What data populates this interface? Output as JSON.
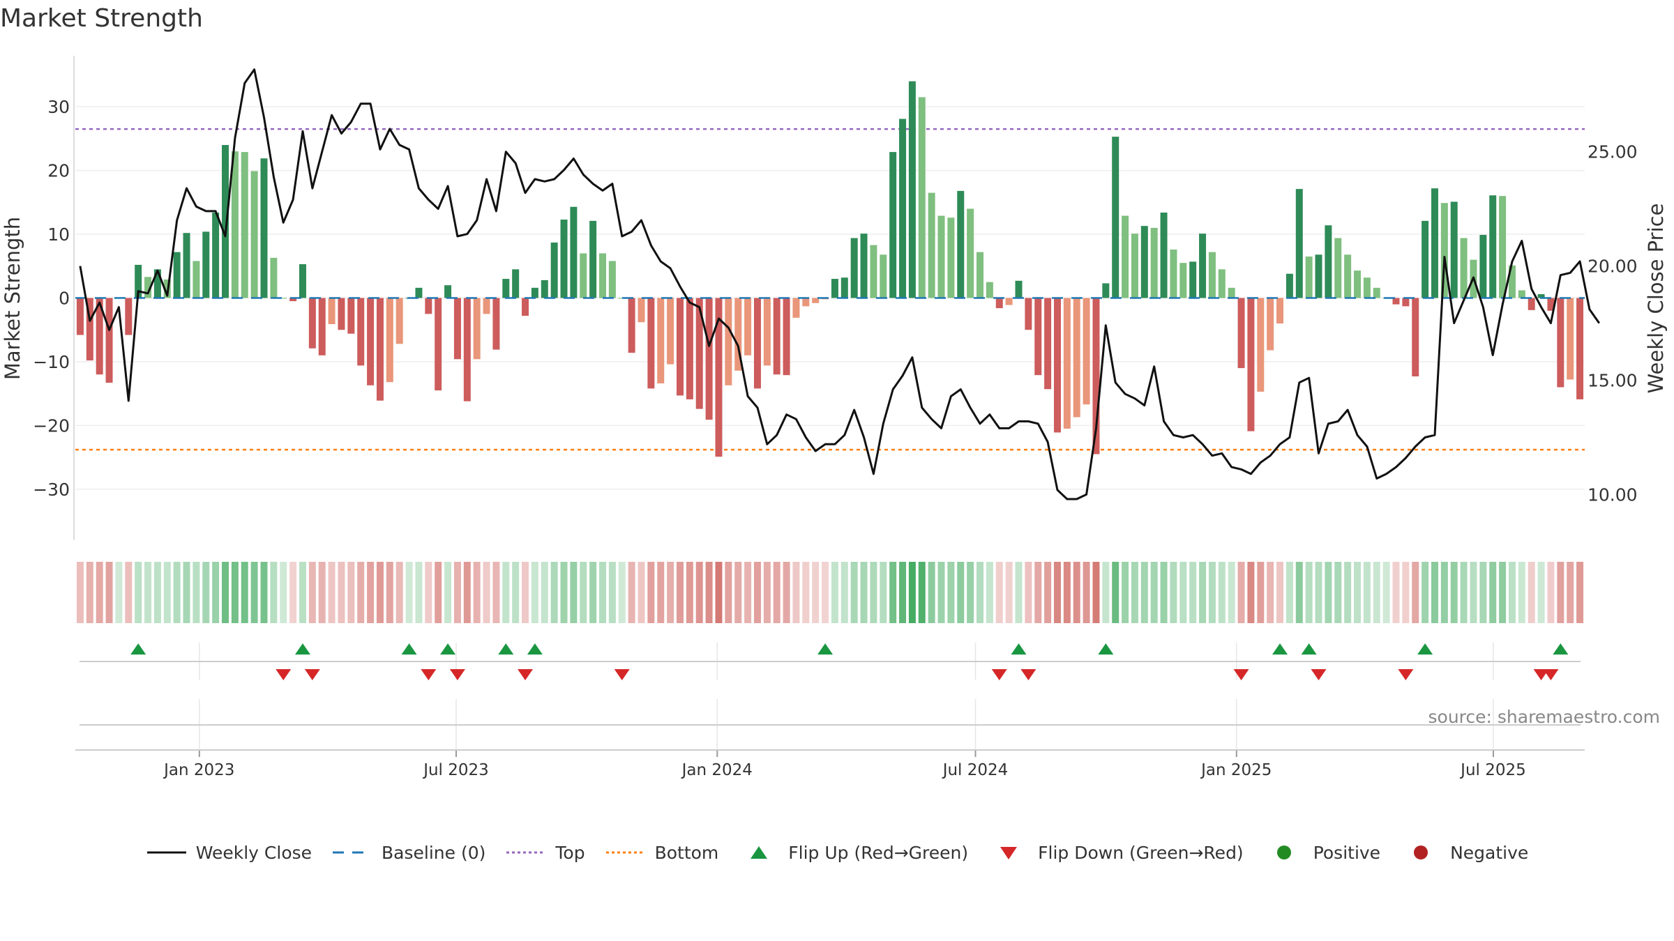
{
  "chart_data": {
    "type": "bar+line",
    "title": "Market Strength",
    "ylabel_left": "Market Strength",
    "ylabel_right": "Weekly Close Price",
    "ylim_left": [
      -38,
      38
    ],
    "yticks_left": [
      30,
      20,
      10,
      0,
      -10,
      -20,
      -30
    ],
    "ytick_labels_left": [
      "30",
      "20",
      "10",
      "0",
      "−10",
      "−20",
      "−30"
    ],
    "ylim_right": [
      8,
      29.2
    ],
    "yticks_right": [
      25,
      20,
      15,
      10
    ],
    "ytick_labels_right": [
      "25.00",
      "20.00",
      "15.00",
      "10.00"
    ],
    "top_line": 26.5,
    "bottom_line": -23.8,
    "x_tick_labels": [
      {
        "date": "2023-01-01",
        "label": "Jan 2023"
      },
      {
        "date": "2023-07-01",
        "label": "Jul 2023"
      },
      {
        "date": "2024-01-01",
        "label": "Jan 2024"
      },
      {
        "date": "2024-07-01",
        "label": "Jul 2024"
      },
      {
        "date": "2025-01-01",
        "label": "Jan 2025"
      },
      {
        "date": "2025-07-01",
        "label": "Jul 2025"
      }
    ],
    "week_dates": [
      "2022-10-09",
      "2025-08-31"
    ],
    "strength": [
      -5.8,
      -9.8,
      -12,
      -13.3,
      0,
      -5.8,
      5.2,
      3.3,
      4.5,
      2.9,
      7.2,
      10.2,
      5.8,
      10.4,
      13.4,
      24,
      23,
      22.9,
      19.9,
      21.9,
      6.3,
      0,
      -0.5,
      5.3,
      -7.9,
      -9,
      -4.1,
      -5,
      -5.6,
      -10.6,
      -13.7,
      -16.1,
      -13.2,
      -7.2,
      0,
      1.6,
      -2.5,
      -14.5,
      2,
      -9.6,
      -16.2,
      -9.6,
      -2.5,
      -8.1,
      3,
      4.5,
      -2.8,
      1.6,
      2.8,
      8.7,
      12.3,
      14.3,
      7,
      12.1,
      7,
      5.8,
      0,
      -8.6,
      -3.8,
      -14.2,
      -13.4,
      -10.4,
      -15.3,
      -15.9,
      -17.4,
      -19.1,
      -24.9,
      -13.7,
      -11.4,
      -9,
      -14.2,
      -10.6,
      -12,
      -12.1,
      -3.1,
      -1.3,
      -0.8,
      -0.2,
      3,
      3.2,
      9.4,
      10.1,
      8.3,
      6.8,
      22.9,
      28.1,
      34,
      31.5,
      16.5,
      12.9,
      12.6,
      16.8,
      14,
      7.2,
      2.5,
      -1.6,
      -1.1,
      2.7,
      -5,
      -12.1,
      -14.3,
      -21.1,
      -20.5,
      -18.7,
      -16.7,
      -24.5,
      2.3,
      25.3,
      12.9,
      10.1,
      11.3,
      11,
      13.4,
      7.6,
      5.5,
      5.7,
      10.1,
      7.2,
      4.5,
      1.6,
      -11,
      -20.9,
      -14.7,
      -8.2,
      -4,
      3.8,
      17.1,
      6.5,
      6.8,
      11.4,
      9.4,
      6.8,
      4.3,
      3.2,
      1.6,
      0,
      -1,
      -1.3,
      -12.3,
      12.1,
      17.2,
      14.9,
      15.1,
      9.4,
      6,
      9.9,
      16.1,
      16,
      5.1,
      1.2,
      -1.9,
      0.6,
      -2,
      -14,
      -12.8,
      -15.9
    ],
    "weekly_close": [
      20,
      17.6,
      18.4,
      17.2,
      18.2,
      14.1,
      18.9,
      18.8,
      19.8,
      18.7,
      22,
      23.4,
      22.6,
      22.4,
      22.4,
      21.3,
      25.6,
      28,
      28.6,
      26.5,
      23.9,
      21.9,
      22.9,
      25.9,
      23.4,
      25,
      26.6,
      25.8,
      26.3,
      27.1,
      27.1,
      25.1,
      26,
      25.3,
      25.1,
      23.4,
      22.9,
      22.5,
      23.5,
      21.3,
      21.4,
      22,
      23.8,
      22.4,
      25,
      24.5,
      23.2,
      23.8,
      23.7,
      23.8,
      24.2,
      24.7,
      24,
      23.6,
      23.3,
      23.6,
      21.3,
      21.5,
      22,
      20.9,
      20.2,
      19.9,
      19.1,
      18.4,
      18.2,
      16.5,
      17.7,
      17.3,
      16.5,
      14.3,
      13.8,
      12.2,
      12.6,
      13.5,
      13.3,
      12.5,
      11.9,
      12.2,
      12.2,
      12.6,
      13.7,
      12.5,
      10.9,
      13.1,
      14.6,
      15.2,
      16,
      13.8,
      13.3,
      12.9,
      14.3,
      14.6,
      13.8,
      13.1,
      13.5,
      12.9,
      12.9,
      13.2,
      13.2,
      13.1,
      12.3,
      10.2,
      9.8,
      9.8,
      10,
      12.9,
      17.4,
      14.9,
      14.4,
      14.2,
      13.9,
      15.6,
      13.2,
      12.6,
      12.5,
      12.6,
      12.2,
      11.7,
      11.8,
      11.2,
      11.1,
      10.9,
      11.4,
      11.7,
      12.2,
      12.5,
      14.9,
      15.1,
      11.8,
      13.1,
      13.2,
      13.7,
      12.6,
      12.1,
      10.7,
      10.9,
      11.2,
      11.6,
      12.1,
      12.5,
      12.6,
      20.4,
      17.5,
      18.5,
      19.5,
      18.2,
      16.1,
      18.3,
      20.2,
      21.1,
      19,
      18.2,
      17.5,
      19.6,
      19.7,
      20.2,
      18.1,
      17.5
    ],
    "flip_up": [
      6,
      23,
      34,
      38,
      44,
      47,
      77,
      97,
      106,
      124,
      127,
      139,
      153
    ],
    "flip_down": [
      21,
      24,
      36,
      39,
      46,
      56,
      95,
      98,
      120,
      128,
      137,
      151,
      152
    ],
    "strip_min": -36,
    "strip_max": 36,
    "source_text": "source: sharemaestro.com",
    "legend": [
      {
        "key": "close",
        "label": "Weekly Close"
      },
      {
        "key": "baseline",
        "label": "Baseline (0)"
      },
      {
        "key": "top",
        "label": "Top"
      },
      {
        "key": "bottom",
        "label": "Bottom"
      },
      {
        "key": "flipup",
        "label": "Flip Up (Red→Green)"
      },
      {
        "key": "flipdown",
        "label": "Flip Down (Green→Red)"
      },
      {
        "key": "pos",
        "label": "Positive"
      },
      {
        "key": "neg",
        "label": "Negative"
      }
    ],
    "colors": {
      "pos_dark": "#2e8b57",
      "pos_light": "#7fbf7f",
      "neg_dark": "#cd5c5c",
      "neg_light": "#e9967a",
      "close": "#111111",
      "baseline": "#1f77b4",
      "top": "#9467bd",
      "bottom": "#ff7f0e",
      "flip_up": "#1a9641",
      "flip_down": "#d62728",
      "pos_dot": "#228b22",
      "neg_dot": "#b22222"
    }
  }
}
